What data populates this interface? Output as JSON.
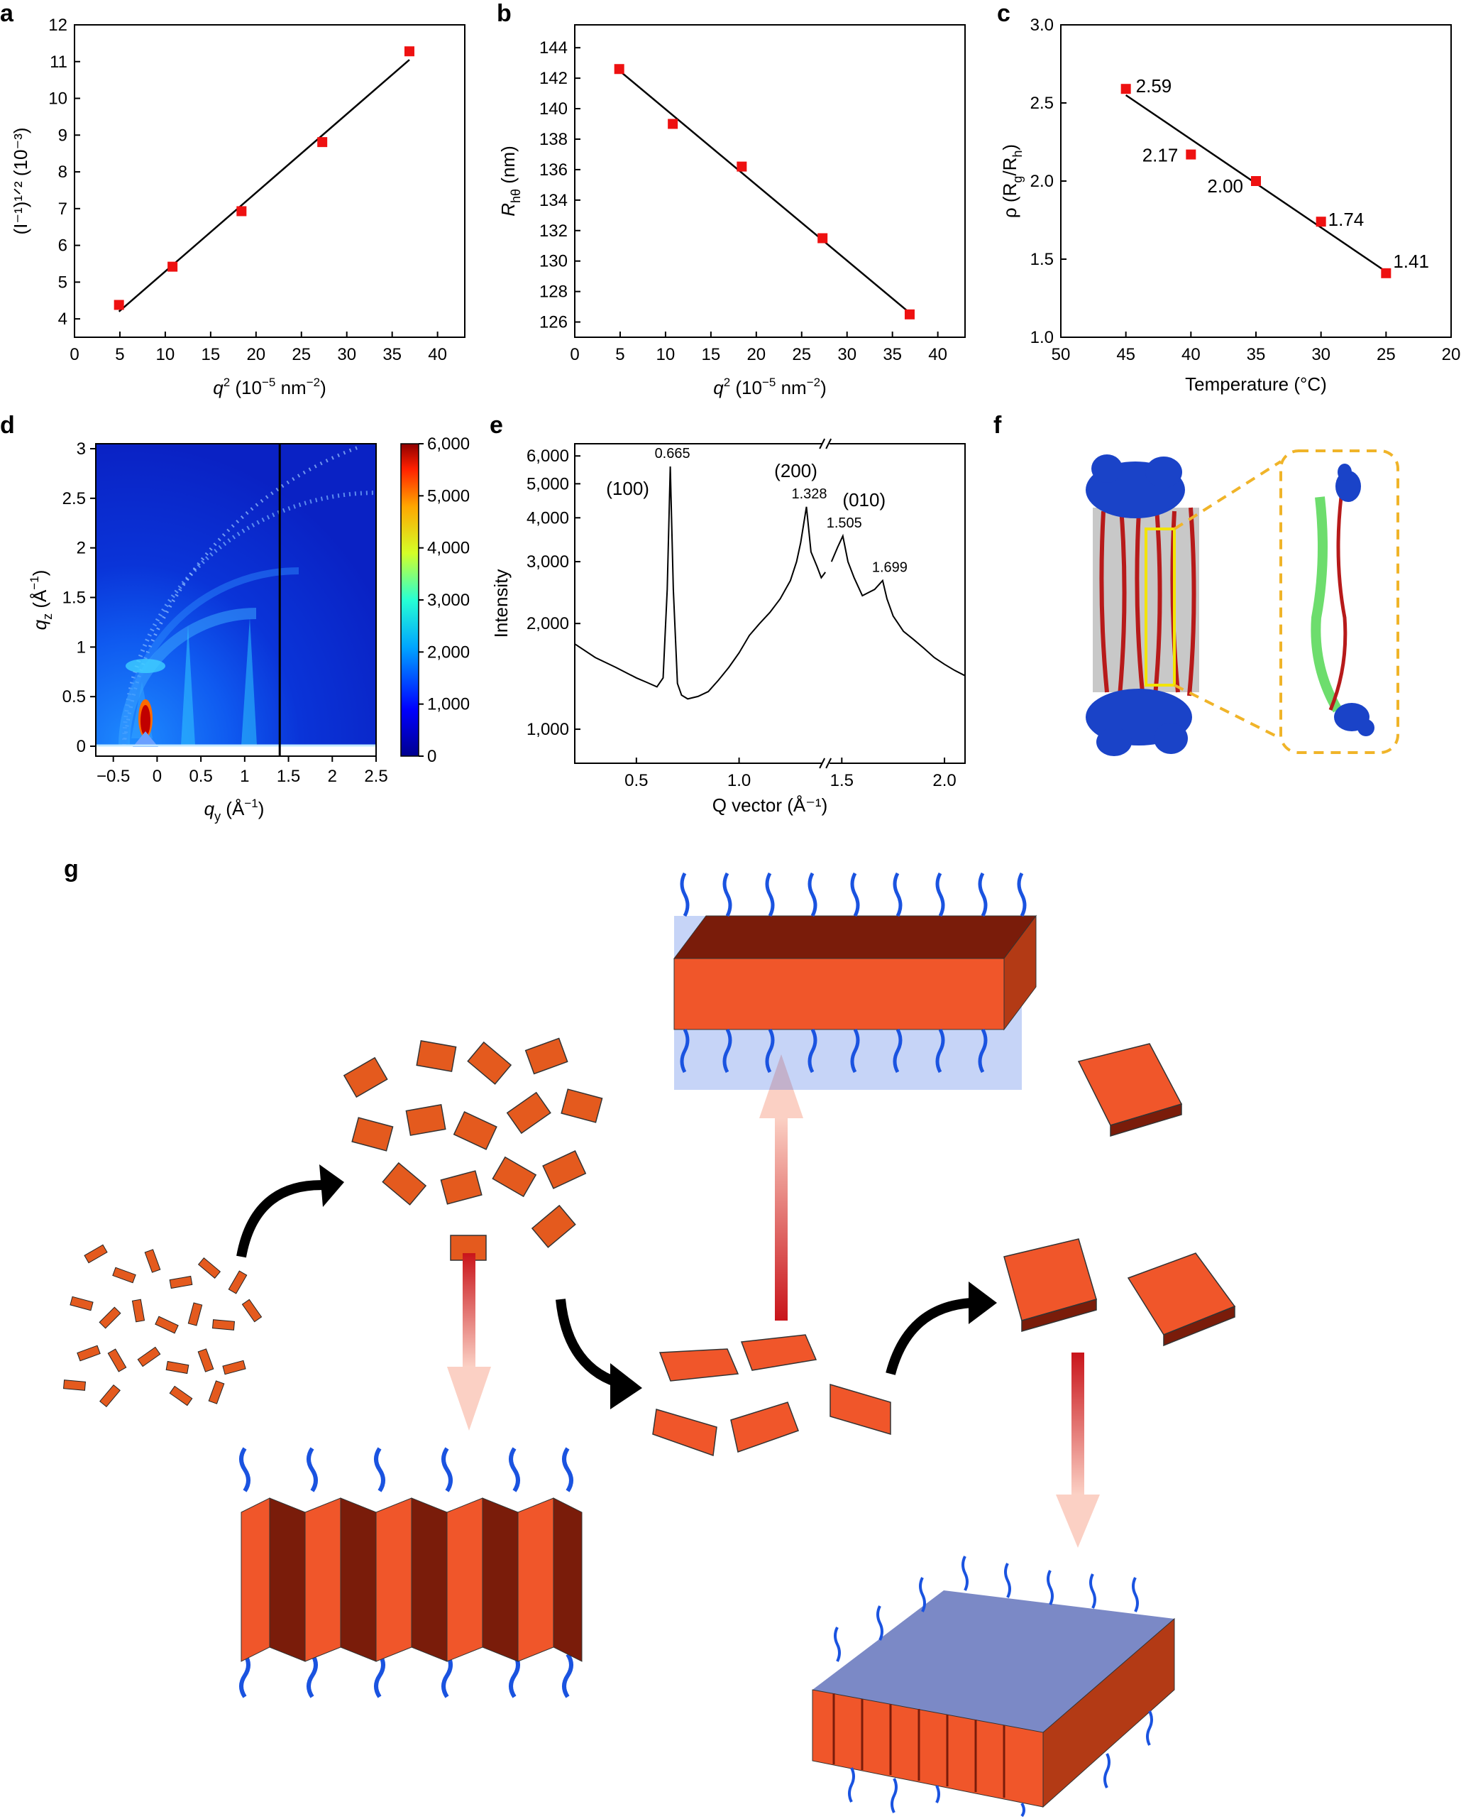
{
  "figure": {
    "panels": [
      "a",
      "b",
      "c",
      "d",
      "e",
      "f",
      "g"
    ]
  },
  "colors": {
    "marker": "#ee1111",
    "fit_line": "#000000",
    "gisaxs_bg": "#0a2fd6",
    "chain_blue": "#1a43c8",
    "chain_red": "#b71a1a",
    "block_orange": "#f0562a",
    "block_dark": "#7a1c0a",
    "arrow_red": "#d81a1a",
    "arrow_black": "#000000",
    "dash_yellow": "#f0b429"
  },
  "chart_data": [
    {
      "panel": "a",
      "type": "scatter",
      "x": [
        4.9,
        10.8,
        18.4,
        27.3,
        36.9
      ],
      "y": [
        4.38,
        5.42,
        6.93,
        8.81,
        11.28
      ],
      "fit": {
        "x": [
          4.9,
          36.9
        ],
        "y": [
          4.2,
          11.05
        ]
      },
      "xlabel_main": "q",
      "xlabel_sup": "2",
      "xlabel_unit": "(10",
      "xlabel_exp": "−5",
      "xlabel_unit2": "nm",
      "xlabel_exp2": "−2",
      "xlabel_close": ")",
      "ylabel": "(I⁻¹)¹ᐟ² (10⁻³)",
      "xlim": [
        0,
        43
      ],
      "ylim": [
        3.5,
        12
      ],
      "xticks": [
        0,
        5,
        10,
        15,
        20,
        25,
        30,
        35,
        40
      ],
      "yticks": [
        4,
        5,
        6,
        7,
        8,
        9,
        10,
        11,
        12
      ]
    },
    {
      "panel": "b",
      "type": "scatter",
      "x": [
        4.9,
        10.8,
        18.4,
        27.3,
        36.9
      ],
      "y": [
        142.6,
        139.0,
        136.2,
        131.5,
        126.5
      ],
      "fit": {
        "x": [
          4.9,
          36.9
        ],
        "y": [
          142.5,
          126.6
        ]
      },
      "xlabel_main": "q",
      "xlabel_sup": "2",
      "xlabel_unit": "(10",
      "xlabel_exp": "−5",
      "xlabel_unit2": "nm",
      "xlabel_exp2": "−2",
      "xlabel_close": ")",
      "ylabel_main": "R",
      "ylabel_sub": "hθ",
      "ylabel_unit": " (nm)",
      "xlim": [
        0,
        43
      ],
      "ylim": [
        125,
        145.5
      ],
      "xticks": [
        0,
        5,
        10,
        15,
        20,
        25,
        30,
        35,
        40
      ],
      "yticks": [
        126,
        128,
        130,
        132,
        134,
        136,
        138,
        140,
        142,
        144
      ]
    },
    {
      "panel": "c",
      "type": "scatter",
      "x": [
        45,
        40,
        35,
        30,
        25
      ],
      "y": [
        2.59,
        2.17,
        2.0,
        1.74,
        1.41
      ],
      "point_labels": [
        "2.59",
        "2.17",
        "2.00",
        "1.74",
        "1.41"
      ],
      "fit": {
        "x": [
          45,
          25
        ],
        "y": [
          2.55,
          1.42
        ]
      },
      "xlabel": "Temperature (°C)",
      "ylabel_pre": "ρ (R",
      "ylabel_sub1": "g",
      "ylabel_mid": "/R",
      "ylabel_sub2": "h",
      "ylabel_post": ")",
      "xlim": [
        50,
        20
      ],
      "ylim": [
        1.0,
        3.0
      ],
      "xticks": [
        50,
        45,
        40,
        35,
        30,
        25,
        20
      ],
      "xtick_labels": [
        "50",
        "45",
        "40",
        "35",
        "30",
        "25",
        "20"
      ],
      "yticks": [
        1.0,
        1.5,
        2.0,
        2.5,
        3.0
      ],
      "ytick_labels": [
        "1.0",
        "1.5",
        "2.0",
        "2.5",
        "3.0"
      ]
    },
    {
      "panel": "d",
      "type": "heatmap",
      "xlabel_main": "q",
      "xlabel_sub": "y",
      "xlabel_unit": " (Å",
      "xlabel_exp": "−1",
      "xlabel_close": ")",
      "ylabel_main": "q",
      "ylabel_sub": "z",
      "ylabel_unit": " (Å",
      "ylabel_exp": "−1",
      "ylabel_close": ")",
      "xlim": [
        -0.7,
        2.5
      ],
      "ylim": [
        -0.1,
        3.05
      ],
      "xticks": [
        -0.5,
        0,
        0.5,
        1,
        1.5,
        2,
        2.5
      ],
      "xtick_labels": [
        "−0.5",
        "0",
        "0.5",
        "1",
        "1.5",
        "2",
        "2.5"
      ],
      "yticks": [
        0,
        0.5,
        1,
        1.5,
        2,
        2.5,
        3
      ],
      "ytick_labels": [
        "0",
        "0.5",
        "1",
        "1.5",
        "2",
        "2.5",
        "3"
      ],
      "colorbar": {
        "min": 0,
        "max": 6000,
        "ticks": [
          "0",
          "1,000",
          "2,000",
          "3,000",
          "4,000",
          "5,000",
          "6,000"
        ]
      },
      "line_cut_qy": 1.4
    },
    {
      "panel": "e",
      "type": "line",
      "xlabel": "Q vector (Å⁻¹)",
      "ylabel": "Intensity",
      "log_y": true,
      "xlim": [
        0.2,
        2.1
      ],
      "ylim": [
        800,
        6500
      ],
      "xticks": [
        0.5,
        1.0,
        1.5,
        2.0
      ],
      "xtick_labels": [
        "0.5",
        "1.0",
        "1.5",
        "2.0"
      ],
      "yticks": [
        1000,
        2000,
        3000,
        4000,
        5000,
        6000
      ],
      "ytick_labels": [
        "1,000",
        "2,000",
        "3,000",
        "4,000",
        "5,000",
        "6,000"
      ],
      "axis_break_x": 1.42,
      "peaks": [
        {
          "q": 0.665,
          "value_label": "0.665",
          "index_label": "(100)"
        },
        {
          "q": 1.328,
          "value_label": "1.328",
          "index_label": "(200)"
        },
        {
          "q": 1.505,
          "value_label": "1.505",
          "index_label": "(010)"
        },
        {
          "q": 1.699,
          "value_label": "1.699",
          "index_label": ""
        }
      ],
      "x": [
        0.2,
        0.3,
        0.4,
        0.5,
        0.55,
        0.6,
        0.63,
        0.65,
        0.665,
        0.68,
        0.7,
        0.72,
        0.75,
        0.8,
        0.85,
        0.9,
        0.95,
        1.0,
        1.05,
        1.1,
        1.15,
        1.2,
        1.25,
        1.28,
        1.3,
        1.328,
        1.35,
        1.38,
        1.4,
        1.42,
        1.45,
        1.48,
        1.505,
        1.53,
        1.56,
        1.6,
        1.63,
        1.66,
        1.699,
        1.72,
        1.75,
        1.8,
        1.85,
        1.9,
        1.95,
        2.0,
        2.05,
        2.1
      ],
      "y": [
        1750,
        1600,
        1500,
        1400,
        1360,
        1320,
        1400,
        2500,
        5600,
        2500,
        1350,
        1250,
        1220,
        1240,
        1280,
        1380,
        1500,
        1650,
        1850,
        2000,
        2150,
        2350,
        2650,
        3000,
        3400,
        4300,
        3200,
        2900,
        2700,
        2800,
        3000,
        3300,
        3550,
        3000,
        2700,
        2400,
        2450,
        2500,
        2650,
        2350,
        2100,
        1900,
        1800,
        1700,
        1600,
        1530,
        1470,
        1420
      ]
    }
  ]
}
